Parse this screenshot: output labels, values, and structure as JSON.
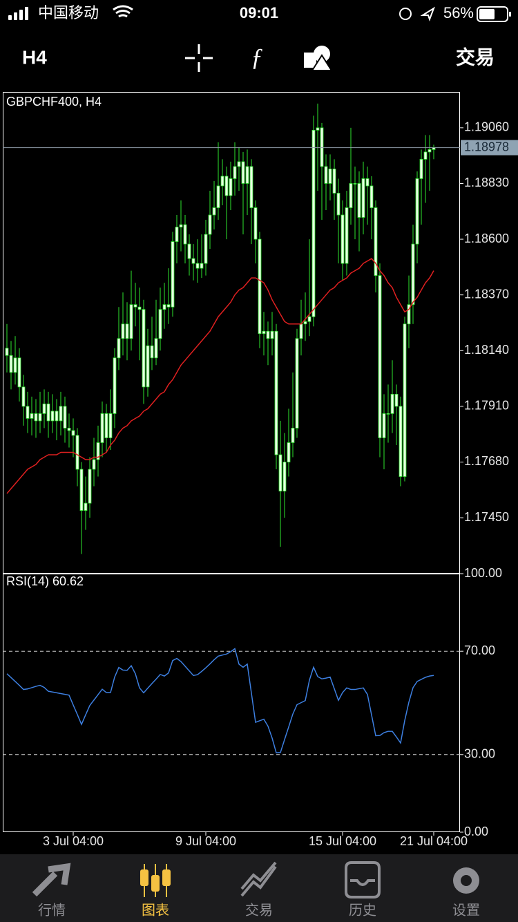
{
  "status_bar": {
    "carrier": "中国移动",
    "time": "09:01",
    "battery": "56%"
  },
  "toolbar": {
    "timeframe": "H4",
    "trade": "交易"
  },
  "chart_data": [
    {
      "type": "candlestick",
      "title": "GBPCHF400, H4",
      "color": "#2ee62e",
      "body_color": "#e9ffe4",
      "categories": [
        null,
        null,
        null,
        null,
        null,
        null,
        null,
        null,
        null,
        null,
        null,
        null,
        null,
        null,
        null,
        null,
        "3 Jul 04:00",
        null,
        null,
        null,
        null,
        null,
        null,
        null,
        null,
        null,
        null,
        null,
        null,
        null,
        null,
        null,
        null,
        null,
        null,
        null,
        null,
        null,
        null,
        null,
        null,
        null,
        null,
        null,
        null,
        null,
        null,
        null,
        "9 Jul 04:00",
        null,
        null,
        null,
        null,
        null,
        null,
        null,
        null,
        null,
        null,
        null,
        null,
        null,
        null,
        null,
        null,
        null,
        null,
        null,
        null,
        null,
        null,
        null,
        null,
        null,
        null,
        null,
        null,
        null,
        null,
        null,
        null,
        "15 Jul 04:00",
        null,
        null,
        null,
        null,
        null,
        null,
        null,
        null,
        null,
        null,
        null,
        null,
        null,
        null,
        null,
        null,
        null,
        null,
        null,
        null,
        null,
        "21 Jul 04:00"
      ],
      "open": [
        1.1815,
        1.1812,
        1.1805,
        1.1811,
        1.1799,
        1.1791,
        1.1786,
        1.1788,
        1.1785,
        1.1788,
        1.1792,
        1.1785,
        1.1789,
        1.1785,
        1.1791,
        1.1782,
        1.1781,
        1.1779,
        1.1765,
        1.1748,
        1.1751,
        1.1765,
        1.1769,
        1.1776,
        1.1788,
        1.1778,
        1.1788,
        1.1811,
        1.1819,
        1.1825,
        1.1819,
        1.1833,
        1.1832,
        1.1831,
        1.1799,
        1.1816,
        1.1811,
        1.1819,
        1.1831,
        1.1833,
        1.1832,
        1.1859,
        1.1865,
        1.1866,
        1.1858,
        1.1852,
        1.185,
        1.1848,
        1.185,
        1.1862,
        1.187,
        1.1873,
        1.1882,
        1.1886,
        1.1878,
        1.1885,
        1.189,
        1.1892,
        1.1883,
        1.189,
        1.1873,
        1.186,
        1.1821,
        1.1822,
        1.1819,
        1.1822,
        1.1771,
        1.1756,
        1.1768,
        1.1776,
        1.1782,
        1.1819,
        1.1825,
        1.1826,
        1.1828,
        1.1905,
        1.1906,
        1.189,
        1.1883,
        1.1889,
        1.1879,
        1.187,
        1.185,
        1.1873,
        1.1883,
        1.1883,
        1.1869,
        1.1885,
        1.1882,
        1.1873,
        1.1845,
        1.1778,
        1.1788,
        1.1788,
        1.1796,
        1.1791,
        1.1762,
        1.1825,
        1.1833,
        1.1858,
        1.1885,
        1.1893,
        1.1896,
        1.1897
      ],
      "high": [
        1.1825,
        1.1818,
        1.182,
        1.1815,
        1.1804,
        1.1797,
        1.1795,
        1.1794,
        1.1797,
        1.1798,
        1.1797,
        1.1796,
        1.1794,
        1.1797,
        1.1795,
        1.1788,
        1.1786,
        1.1782,
        1.1768,
        1.1762,
        1.177,
        1.1778,
        1.1783,
        1.1793,
        1.1792,
        1.1798,
        1.1815,
        1.1832,
        1.1838,
        1.1834,
        1.1847,
        1.1842,
        1.184,
        1.1835,
        1.1823,
        1.1828,
        1.1835,
        1.184,
        1.1842,
        1.1848,
        1.1863,
        1.187,
        1.1876,
        1.187,
        1.1862,
        1.1858,
        1.186,
        1.1862,
        1.1868,
        1.188,
        1.1884,
        1.19,
        1.1893,
        1.189,
        1.1892,
        1.19,
        1.1898,
        1.1896,
        1.1897,
        1.1893,
        1.1876,
        1.1863,
        1.183,
        1.1826,
        1.183,
        1.1825,
        1.1785,
        1.178,
        1.179,
        1.1805,
        1.1823,
        1.1835,
        1.1838,
        1.186,
        1.1911,
        1.1916,
        1.1908,
        1.1895,
        1.1895,
        1.1893,
        1.1885,
        1.1876,
        1.188,
        1.1906,
        1.189,
        1.1888,
        1.1892,
        1.189,
        1.1886,
        1.1876,
        1.185,
        1.1796,
        1.18,
        1.181,
        1.18,
        1.1795,
        1.1828,
        1.1845,
        1.1866,
        1.1888,
        1.1897,
        1.1903,
        1.1903,
        1.1899
      ],
      "low": [
        1.1805,
        1.1798,
        1.18,
        1.1793,
        1.1783,
        1.178,
        1.1779,
        1.1778,
        1.178,
        1.1782,
        1.1778,
        1.178,
        1.1777,
        1.1779,
        1.1776,
        1.1774,
        1.177,
        1.1758,
        1.173,
        1.174,
        1.1745,
        1.1758,
        1.1762,
        1.177,
        1.1772,
        1.1773,
        1.1782,
        1.1806,
        1.1812,
        1.181,
        1.1814,
        1.1824,
        1.181,
        1.1792,
        1.1795,
        1.1806,
        1.1808,
        1.1814,
        1.1823,
        1.1825,
        1.1828,
        1.185,
        1.1855,
        1.185,
        1.1845,
        1.1843,
        1.1842,
        1.1844,
        1.1845,
        1.1856,
        1.1864,
        1.1868,
        1.1874,
        1.186,
        1.1872,
        1.1878,
        1.188,
        1.1862,
        1.187,
        1.1858,
        1.185,
        1.1815,
        1.1812,
        1.1808,
        1.1812,
        1.1765,
        1.1733,
        1.1745,
        1.1762,
        1.177,
        1.1778,
        1.1812,
        1.1818,
        1.182,
        1.1824,
        1.188,
        1.1868,
        1.1872,
        1.1876,
        1.1868,
        1.185,
        1.1843,
        1.1845,
        1.1866,
        1.186,
        1.1855,
        1.1862,
        1.1866,
        1.186,
        1.1838,
        1.177,
        1.1765,
        1.1776,
        1.178,
        1.1775,
        1.1758,
        1.176,
        1.1815,
        1.1825,
        1.185,
        1.1866,
        1.1875,
        1.188,
        1.1893
      ],
      "close": [
        1.1812,
        1.1805,
        1.1811,
        1.1799,
        1.1791,
        1.1786,
        1.1788,
        1.1785,
        1.1788,
        1.1792,
        1.1785,
        1.1789,
        1.1785,
        1.1791,
        1.1782,
        1.1781,
        1.1779,
        1.1765,
        1.1748,
        1.1751,
        1.1765,
        1.1769,
        1.1776,
        1.1788,
        1.1778,
        1.1788,
        1.1811,
        1.1819,
        1.1825,
        1.1819,
        1.1833,
        1.1832,
        1.1831,
        1.1799,
        1.1816,
        1.1811,
        1.1819,
        1.1831,
        1.1833,
        1.1832,
        1.1859,
        1.1865,
        1.1866,
        1.1858,
        1.1852,
        1.185,
        1.1848,
        1.185,
        1.1862,
        1.187,
        1.1873,
        1.1882,
        1.1886,
        1.1878,
        1.1885,
        1.189,
        1.1892,
        1.1883,
        1.189,
        1.1873,
        1.186,
        1.1821,
        1.1822,
        1.1819,
        1.1822,
        1.1771,
        1.1756,
        1.1768,
        1.1776,
        1.1782,
        1.1819,
        1.1825,
        1.1826,
        1.1828,
        1.1905,
        1.1906,
        1.189,
        1.1883,
        1.1889,
        1.1879,
        1.187,
        1.185,
        1.1873,
        1.1883,
        1.1883,
        1.1869,
        1.1885,
        1.1882,
        1.1873,
        1.1845,
        1.1778,
        1.1788,
        1.1788,
        1.1796,
        1.1791,
        1.1762,
        1.1825,
        1.1833,
        1.1858,
        1.1885,
        1.1893,
        1.1896,
        1.1897,
        1.18978
      ],
      "series": [
        {
          "color": "#e02020",
          "values": [
            1.1755,
            1.1757,
            1.1759,
            1.1761,
            1.1763,
            1.1765,
            1.1766,
            1.1767,
            1.1769,
            1.177,
            1.1771,
            1.1771,
            1.1771,
            1.1772,
            1.1772,
            1.1772,
            1.1772,
            1.1771,
            1.177,
            1.1769,
            1.1769,
            1.177,
            1.177,
            1.1771,
            1.1772,
            1.1775,
            1.1777,
            1.178,
            1.1782,
            1.1783,
            1.1785,
            1.1786,
            1.1787,
            1.1789,
            1.179,
            1.1792,
            1.1794,
            1.1796,
            1.1797,
            1.18,
            1.1802,
            1.1805,
            1.1808,
            1.181,
            1.1812,
            1.1814,
            1.1816,
            1.1818,
            1.182,
            1.1822,
            1.1825,
            1.1828,
            1.183,
            1.1832,
            1.1834,
            1.1837,
            1.1839,
            1.184,
            1.1842,
            1.1844,
            1.1844,
            1.1843,
            1.1842,
            1.1839,
            1.1835,
            1.1832,
            1.1829,
            1.1826,
            1.1825,
            1.1825,
            1.1825,
            1.1825,
            1.1827,
            1.1829,
            1.1831,
            1.1833,
            1.1835,
            1.1837,
            1.1839,
            1.184,
            1.1842,
            1.1843,
            1.1844,
            1.1846,
            1.1847,
            1.1848,
            1.185,
            1.1851,
            1.1852,
            1.185,
            1.1847,
            1.1845,
            1.1842,
            1.184,
            1.1836,
            1.1833,
            1.183,
            1.1831,
            1.1834,
            1.1836,
            1.1839,
            1.1842,
            1.1844,
            1.1847
          ]
        }
      ],
      "last_price": 1.18978,
      "ylim": [
        1.17222,
        1.19208
      ],
      "yticks": [
        {
          "value": 1.1906,
          "label": "1.19060"
        },
        {
          "value": 1.1883,
          "label": "1.18830"
        },
        {
          "value": 1.186,
          "label": "1.18600"
        },
        {
          "value": 1.1837,
          "label": "1.18370"
        },
        {
          "value": 1.1814,
          "label": "1.18140"
        },
        {
          "value": 1.1791,
          "label": "1.17910"
        },
        {
          "value": 1.1768,
          "label": "1.17680"
        },
        {
          "value": 1.1745,
          "label": "1.17450"
        }
      ]
    },
    {
      "type": "line",
      "title": "RSI(14) 60.62",
      "series": [
        {
          "color": "#3d7fe0",
          "values": [
            61.3,
            59.8,
            58.3,
            56.8,
            55.2,
            55.4,
            55.9,
            56.4,
            56.8,
            56.0,
            54.5,
            54.2,
            53.9,
            53.6,
            53.3,
            53.0,
            49.2,
            45.5,
            41.7,
            45.4,
            49.0,
            51.1,
            53.2,
            55.3,
            54.0,
            54.0,
            60.0,
            63.7,
            62.7,
            62.6,
            64.4,
            61.3,
            55.8,
            53.9,
            55.7,
            57.5,
            59.2,
            61.0,
            60.4,
            61.6,
            66.4,
            67.2,
            66.0,
            64.2,
            62.4,
            60.6,
            60.9,
            62.2,
            63.6,
            65.1,
            66.7,
            68.1,
            68.5,
            68.9,
            69.8,
            71.0,
            65.0,
            63.8,
            65.0,
            53.8,
            42.5,
            43.1,
            43.7,
            41.0,
            36.4,
            30.7,
            30.8,
            35.8,
            40.7,
            45.7,
            49.3,
            50.1,
            50.9,
            58.8,
            63.8,
            60.2,
            59.3,
            59.6,
            60.0,
            55.5,
            51.0,
            54.0,
            55.8,
            55.2,
            55.2,
            55.5,
            55.8,
            53.3,
            45.3,
            37.3,
            37.4,
            38.5,
            39.0,
            39.0,
            36.8,
            34.5,
            43.2,
            50.3,
            55.9,
            58.3,
            59.1,
            59.9,
            60.4,
            60.62
          ]
        }
      ],
      "ylim": [
        0,
        100
      ],
      "yticks": [
        {
          "value": 100,
          "label": "100.00"
        },
        {
          "value": 70,
          "label": "70.00"
        },
        {
          "value": 30,
          "label": "30.00"
        },
        {
          "value": 0,
          "label": "0.00"
        }
      ]
    }
  ],
  "tabs": {
    "labels": [
      "行情",
      "图表",
      "交易",
      "历史",
      "设置"
    ],
    "active": 1
  }
}
